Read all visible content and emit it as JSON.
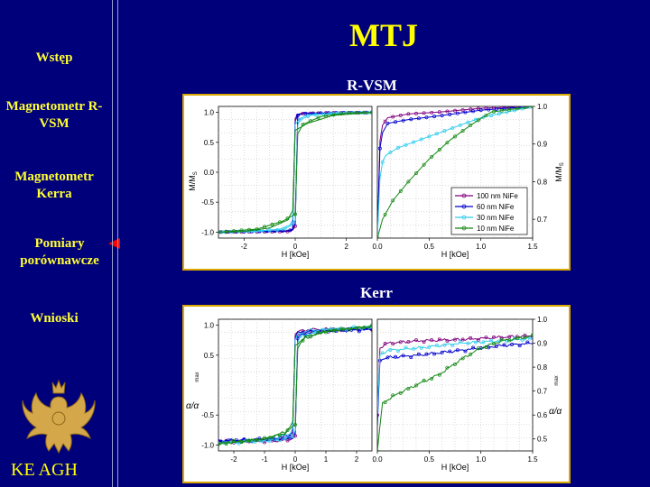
{
  "title": "MTJ",
  "nav": [
    {
      "label": "Wstęp"
    },
    {
      "label": "Magnetometr R-VSM"
    },
    {
      "label": "Magnetometr Kerra"
    },
    {
      "label": "Pomiary porównawcze"
    },
    {
      "label": "Wnioski"
    }
  ],
  "active_nav": "Pomiary porównawcze",
  "footer": "KE AGH",
  "logo_icon": "eagle-crest-icon",
  "colors": {
    "background": "#00007a",
    "title": "#ffff00",
    "nav": "#ffff33",
    "panel_border": "#d8a800",
    "pointer": "#ff0000"
  },
  "charts": {
    "vsm": {
      "heading": "R-VSM",
      "ylabel": "M/M",
      "ylabel_sub": "S",
      "left_xlabel": "H [kOe]",
      "right_xlabel": "H [kOe]",
      "left_xticks": [
        "-2",
        "0",
        "2"
      ],
      "left_yticks": [
        "1.0",
        "0.5",
        "0.0",
        "-0.5",
        "-1.0"
      ],
      "right_xticks": [
        "0.0",
        "0.5",
        "1.0",
        "1.5"
      ],
      "right_yticks": [
        "1.0",
        "0.9",
        "0.8",
        "0.7"
      ]
    },
    "kerr": {
      "heading": "Kerr",
      "ylabel": "α/α",
      "ylabel_sub": "max",
      "left_xlabel": "H [kOe]",
      "right_xlabel": "H [kOe]",
      "left_xticks": [
        "-2",
        "-1",
        "0",
        "1",
        "2"
      ],
      "left_yticks": [
        "1.0",
        "0.5",
        "",
        "-0.5",
        "-1.0"
      ],
      "right_xticks": [
        "0.0",
        "0.5",
        "1.0",
        "1.5"
      ],
      "right_yticks": [
        "1.0",
        "0.9",
        "0.8",
        "0.7",
        "0.6",
        "0.5"
      ]
    }
  },
  "legend": [
    {
      "name": "100 nm NiFe",
      "color": "#800080"
    },
    {
      "name": "60 nm NiFe",
      "color": "#0000cc"
    },
    {
      "name": "30 nm NiFe",
      "color": "#33ccee"
    },
    {
      "name": "10 nm NiFe",
      "color": "#118811"
    }
  ],
  "chart_data": [
    {
      "type": "line",
      "title": "R-VSM",
      "xlabel": "H [kOe]",
      "ylabel": "M/M_S",
      "xlim": [
        -3,
        3
      ],
      "ylim": [
        -1.1,
        1.1
      ],
      "series": [
        {
          "name": "100 nm NiFe",
          "x": [
            -3,
            -0.3,
            -0.1,
            0.0,
            0.05,
            0.1,
            0.3,
            1,
            3
          ],
          "y": [
            -1.0,
            -0.99,
            -0.97,
            -0.9,
            0.7,
            0.95,
            0.98,
            0.99,
            1.0
          ]
        },
        {
          "name": "60 nm NiFe",
          "x": [
            -3,
            -0.3,
            -0.1,
            0.0,
            0.05,
            0.1,
            0.3,
            1,
            3
          ],
          "y": [
            -1.0,
            -0.98,
            -0.96,
            -0.85,
            0.8,
            0.95,
            0.98,
            0.99,
            1.0
          ]
        },
        {
          "name": "30 nm NiFe",
          "x": [
            -3,
            -0.5,
            -0.2,
            0.0,
            0.05,
            0.2,
            0.6,
            1.5,
            3
          ],
          "y": [
            -1.0,
            -0.96,
            -0.9,
            -0.8,
            0.75,
            0.88,
            0.95,
            0.99,
            1.0
          ]
        },
        {
          "name": "10 nm NiFe",
          "x": [
            -3,
            -1.5,
            -0.5,
            0.0,
            0.05,
            0.3,
            1.0,
            2.0,
            3
          ],
          "y": [
            -1.0,
            -0.95,
            -0.82,
            -0.7,
            0.6,
            0.8,
            0.93,
            0.99,
            1.0
          ]
        }
      ]
    },
    {
      "type": "line",
      "title": "R-VSM",
      "xlabel": "H [kOe]",
      "ylabel": "M/M_S",
      "xlim": [
        0,
        1.5
      ],
      "ylim": [
        0.65,
        1.0
      ],
      "series": [
        {
          "name": "100 nm NiFe",
          "x": [
            0.0,
            0.02,
            0.05,
            0.1,
            0.3,
            0.6,
            1.0,
            1.5
          ],
          "y": [
            0.65,
            0.9,
            0.95,
            0.97,
            0.98,
            0.985,
            0.995,
            1.0
          ]
        },
        {
          "name": "60 nm NiFe",
          "x": [
            0.0,
            0.02,
            0.05,
            0.1,
            0.3,
            0.6,
            1.0,
            1.5
          ],
          "y": [
            0.65,
            0.88,
            0.93,
            0.955,
            0.965,
            0.975,
            0.99,
            1.0
          ]
        },
        {
          "name": "30 nm NiFe",
          "x": [
            0.0,
            0.03,
            0.08,
            0.2,
            0.4,
            0.7,
            1.0,
            1.5
          ],
          "y": [
            0.65,
            0.84,
            0.87,
            0.89,
            0.91,
            0.94,
            0.97,
            1.0
          ]
        },
        {
          "name": "10 nm NiFe",
          "x": [
            0.0,
            0.05,
            0.15,
            0.3,
            0.5,
            0.7,
            0.9,
            1.1,
            1.5
          ],
          "y": [
            0.65,
            0.7,
            0.75,
            0.8,
            0.86,
            0.91,
            0.95,
            0.985,
            1.0
          ]
        }
      ]
    },
    {
      "type": "line",
      "title": "Kerr",
      "xlabel": "H [kOe]",
      "ylabel": "α/α_max",
      "xlim": [
        -2.5,
        2.5
      ],
      "ylim": [
        -1.1,
        1.1
      ],
      "series": [
        {
          "name": "100 nm NiFe",
          "x": [
            -2.5,
            -0.5,
            -0.1,
            0.0,
            0.05,
            0.2,
            1.0,
            2.5
          ],
          "y": [
            -0.95,
            -0.93,
            -0.9,
            -0.85,
            0.8,
            0.88,
            0.92,
            0.95
          ]
        },
        {
          "name": "60 nm NiFe",
          "x": [
            -2.5,
            -0.5,
            -0.1,
            0.0,
            0.05,
            0.2,
            1.0,
            2.5
          ],
          "y": [
            -0.93,
            -0.9,
            -0.88,
            -0.8,
            0.75,
            0.85,
            0.9,
            0.93
          ]
        },
        {
          "name": "30 nm NiFe",
          "x": [
            -2.5,
            -0.5,
            -0.1,
            0.0,
            0.05,
            0.2,
            1.0,
            2.5
          ],
          "y": [
            -0.97,
            -0.92,
            -0.86,
            -0.75,
            0.7,
            0.82,
            0.92,
            0.97
          ]
        },
        {
          "name": "10 nm NiFe",
          "x": [
            -2.5,
            -1.0,
            -0.3,
            0.0,
            0.05,
            0.3,
            1.0,
            2.5
          ],
          "y": [
            -0.98,
            -0.9,
            -0.8,
            -0.65,
            0.6,
            0.78,
            0.9,
            0.98
          ]
        }
      ]
    },
    {
      "type": "line",
      "title": "Kerr",
      "xlabel": "H [kOe]",
      "ylabel": "α/α_max",
      "xlim": [
        0,
        1.5
      ],
      "ylim": [
        0.45,
        1.0
      ],
      "series": [
        {
          "name": "100 nm NiFe",
          "x": [
            0.0,
            0.02,
            0.1,
            0.4,
            0.8,
            1.2,
            1.5
          ],
          "y": [
            0.6,
            0.88,
            0.9,
            0.91,
            0.915,
            0.925,
            0.93
          ]
        },
        {
          "name": "60 nm NiFe",
          "x": [
            0.0,
            0.02,
            0.1,
            0.4,
            0.8,
            1.2,
            1.5
          ],
          "y": [
            0.55,
            0.83,
            0.84,
            0.85,
            0.87,
            0.89,
            0.9
          ]
        },
        {
          "name": "30 nm NiFe",
          "x": [
            0.0,
            0.02,
            0.1,
            0.4,
            0.8,
            1.2,
            1.5
          ],
          "y": [
            0.6,
            0.85,
            0.87,
            0.88,
            0.9,
            0.91,
            0.92
          ]
        },
        {
          "name": "10 nm NiFe",
          "x": [
            0.0,
            0.05,
            0.2,
            0.4,
            0.6,
            0.8,
            1.0,
            1.2,
            1.5
          ],
          "y": [
            0.45,
            0.65,
            0.69,
            0.73,
            0.77,
            0.83,
            0.88,
            0.91,
            0.93
          ]
        }
      ]
    }
  ]
}
